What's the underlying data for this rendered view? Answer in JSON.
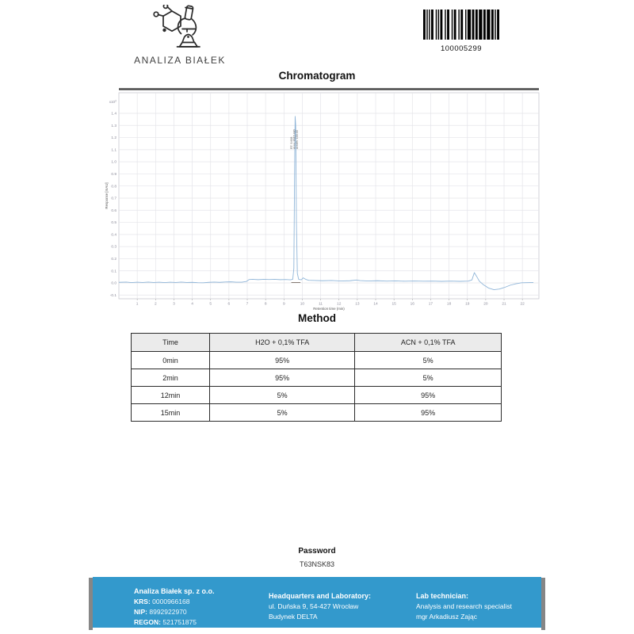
{
  "header": {
    "logo_text": "ANALIZA BIAŁEK",
    "barcode_number": "100005299"
  },
  "sections": {
    "chromatogram_title": "Chromatogram",
    "method_title": "Method"
  },
  "chart_data": {
    "type": "line",
    "title": "Chromatogram",
    "xlabel": "Retention time (min)",
    "ylabel": "Response [mAU]",
    "y_scale_label": "x10",
    "y_scale_exp": "2",
    "xlim": [
      0,
      22.9
    ],
    "ylim": [
      -0.13,
      1.57
    ],
    "x_ticks": [
      1,
      2,
      3,
      4,
      5,
      6,
      7,
      8,
      9,
      10,
      11,
      12,
      13,
      14,
      15,
      16,
      17,
      18,
      19,
      20,
      21,
      22
    ],
    "y_ticks": [
      1.4,
      1.3,
      1.2,
      1.1,
      1.0,
      0.9,
      0.8,
      0.7,
      0.6,
      0.5,
      0.4,
      0.3,
      0.2,
      0.1,
      0.0,
      -0.1
    ],
    "grid": true,
    "legend": "none",
    "peak_annotation": [
      "RT: 9.608",
      "Area: 8916.480",
      "Area%: 100.00"
    ],
    "main_peak": {
      "rt": 9.61,
      "height": 1.375
    },
    "series": [
      {
        "name": "signal",
        "color": "#8fb5d8",
        "points": [
          [
            0,
            0.005
          ],
          [
            0.4,
            0.007
          ],
          [
            0.7,
            0.003
          ],
          [
            1.0,
            0.006
          ],
          [
            1.3,
            0.004
          ],
          [
            1.6,
            0.007
          ],
          [
            1.9,
            0.004
          ],
          [
            2.2,
            0.006
          ],
          [
            2.5,
            0.003
          ],
          [
            2.8,
            0.006
          ],
          [
            3.1,
            0.004
          ],
          [
            3.4,
            0.007
          ],
          [
            3.7,
            0.004
          ],
          [
            4.0,
            0.005
          ],
          [
            4.3,
            0.002
          ],
          [
            4.6,
            0.001
          ],
          [
            4.9,
            0.005
          ],
          [
            5.2,
            0.007
          ],
          [
            5.5,
            0.005
          ],
          [
            5.8,
            0.008
          ],
          [
            6.1,
            0.009
          ],
          [
            6.4,
            0.006
          ],
          [
            6.7,
            0.006
          ],
          [
            6.95,
            0.012
          ],
          [
            7.1,
            0.028
          ],
          [
            7.3,
            0.03
          ],
          [
            7.6,
            0.027
          ],
          [
            7.9,
            0.03
          ],
          [
            8.2,
            0.028
          ],
          [
            8.5,
            0.03
          ],
          [
            8.8,
            0.027
          ],
          [
            9.1,
            0.028
          ],
          [
            9.35,
            0.026
          ],
          [
            9.48,
            0.03
          ],
          [
            9.54,
            0.12
          ],
          [
            9.58,
            0.9
          ],
          [
            9.61,
            1.375
          ],
          [
            9.64,
            1.3
          ],
          [
            9.68,
            0.5
          ],
          [
            9.73,
            0.08
          ],
          [
            9.8,
            0.03
          ],
          [
            9.95,
            0.026
          ],
          [
            10.05,
            0.042
          ],
          [
            10.18,
            0.03
          ],
          [
            10.35,
            0.022
          ],
          [
            10.7,
            0.02
          ],
          [
            11.1,
            0.018
          ],
          [
            11.6,
            0.02
          ],
          [
            12.1,
            0.016
          ],
          [
            12.6,
            0.018
          ],
          [
            12.95,
            0.024
          ],
          [
            13.15,
            0.019
          ],
          [
            13.6,
            0.016
          ],
          [
            14.1,
            0.018
          ],
          [
            14.6,
            0.015
          ],
          [
            15.1,
            0.017
          ],
          [
            15.6,
            0.014
          ],
          [
            16.1,
            0.016
          ],
          [
            16.6,
            0.014
          ],
          [
            17.1,
            0.015
          ],
          [
            17.6,
            0.013
          ],
          [
            18.1,
            0.015
          ],
          [
            18.6,
            0.013
          ],
          [
            19.05,
            0.015
          ],
          [
            19.25,
            0.025
          ],
          [
            19.38,
            0.085
          ],
          [
            19.5,
            0.055
          ],
          [
            19.65,
            0.015
          ],
          [
            19.85,
            -0.012
          ],
          [
            20.15,
            -0.042
          ],
          [
            20.45,
            -0.056
          ],
          [
            20.75,
            -0.05
          ],
          [
            21.05,
            -0.036
          ],
          [
            21.35,
            -0.018
          ],
          [
            21.65,
            -0.007
          ],
          [
            21.95,
            0.001
          ],
          [
            22.6,
            0.004
          ]
        ]
      }
    ]
  },
  "method": {
    "headers": [
      "Time",
      "H2O + 0,1% TFA",
      "ACN + 0,1% TFA"
    ],
    "rows": [
      [
        "0min",
        "95%",
        "5%"
      ],
      [
        "2min",
        "95%",
        "5%"
      ],
      [
        "12min",
        "5%",
        "95%"
      ],
      [
        "15min",
        "5%",
        "95%"
      ]
    ]
  },
  "password": {
    "label": "Password",
    "value": "T63NSK83"
  },
  "footer": {
    "company": {
      "name": "Analiza Białek sp. z o.o.",
      "krs_label": "KRS:",
      "krs": "0000966168",
      "nip_label": "NIP:",
      "nip": "8992922970",
      "regon_label": "REGON:",
      "regon": "521751875"
    },
    "headquarters": {
      "title": "Headquarters and Laboratory:",
      "line1": "ul. Duńska 9, 54-427 Wrocław",
      "line2": "Budynek DELTA"
    },
    "technician": {
      "title": "Lab technician:",
      "line1": "Analysis and research specialist",
      "line2": "mgr Arkadiusz Zając"
    }
  },
  "colors": {
    "footer_bg": "#3399CC",
    "footer_shadow": "#868686",
    "series_line": "#8fb5d8",
    "grid_line": "#e4e4e9",
    "table_header_bg": "#ebebeb",
    "chart_top_border": "#4a4a4a"
  }
}
